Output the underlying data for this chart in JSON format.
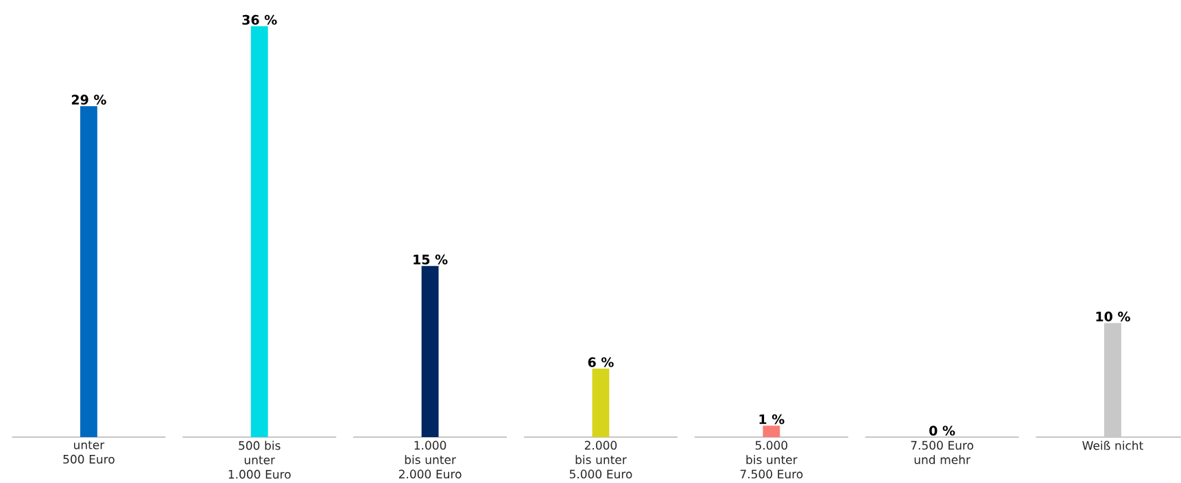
{
  "chart_data": {
    "type": "bar",
    "categories": [
      "unter 500 Euro",
      "500 bis unter 1.000 Euro",
      "1.000 bis unter 2.000 Euro",
      "2.000 bis unter 5.000 Euro",
      "5.000 bis unter 7.500 Euro",
      "7.500 Euro und mehr",
      "Weiß nicht"
    ],
    "values": [
      29,
      36,
      15,
      6,
      1,
      0,
      10
    ],
    "colors": [
      "#006ac1",
      "#00dce6",
      "#002761",
      "#d7d51b",
      "#f97c74",
      "#7f7f7f",
      "#c8c8c8"
    ],
    "value_labels": [
      "29 %",
      "36 %",
      "15 %",
      "6 %",
      "1 %",
      "0 %",
      "10 %"
    ]
  }
}
